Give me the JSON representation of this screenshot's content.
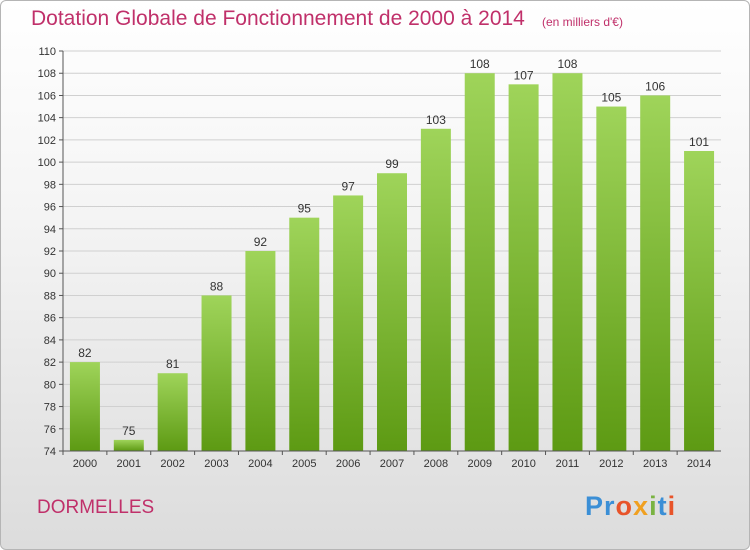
{
  "header": {
    "title": "Dotation Globale de Fonctionnement de 2000 à 2014",
    "unit": "(en milliers d'€)"
  },
  "footer": {
    "commune": "DORMELLES",
    "logo_text": "Proxiti",
    "logo_colors": [
      "#3b8fd6",
      "#3b8fd6",
      "#e8542a",
      "#f0a020",
      "#7ab342",
      "#3b8fd6",
      "#e8542a"
    ]
  },
  "colors": {
    "title": "#c0306a",
    "bar_light": "#9fd45a",
    "bar_dark": "#5d9a13",
    "grid": "#d0d0d0",
    "axis": "#555555"
  },
  "chart_data": {
    "type": "bar",
    "categories": [
      "2000",
      "2001",
      "2002",
      "2003",
      "2004",
      "2005",
      "2006",
      "2007",
      "2008",
      "2009",
      "2010",
      "2011",
      "2012",
      "2013",
      "2014"
    ],
    "values": [
      82,
      75,
      81,
      88,
      92,
      95,
      97,
      99,
      103,
      108,
      107,
      108,
      105,
      106,
      101
    ],
    "title": "Dotation Globale de Fonctionnement de 2000 à 2014",
    "subtitle": "(en milliers d'€)",
    "xlabel": "",
    "ylabel": "",
    "ylim": [
      74,
      110
    ],
    "yticks": [
      74,
      76,
      78,
      80,
      82,
      84,
      86,
      88,
      90,
      92,
      94,
      96,
      98,
      100,
      102,
      104,
      106,
      108,
      110
    ],
    "grid": true,
    "data_labels": true
  }
}
